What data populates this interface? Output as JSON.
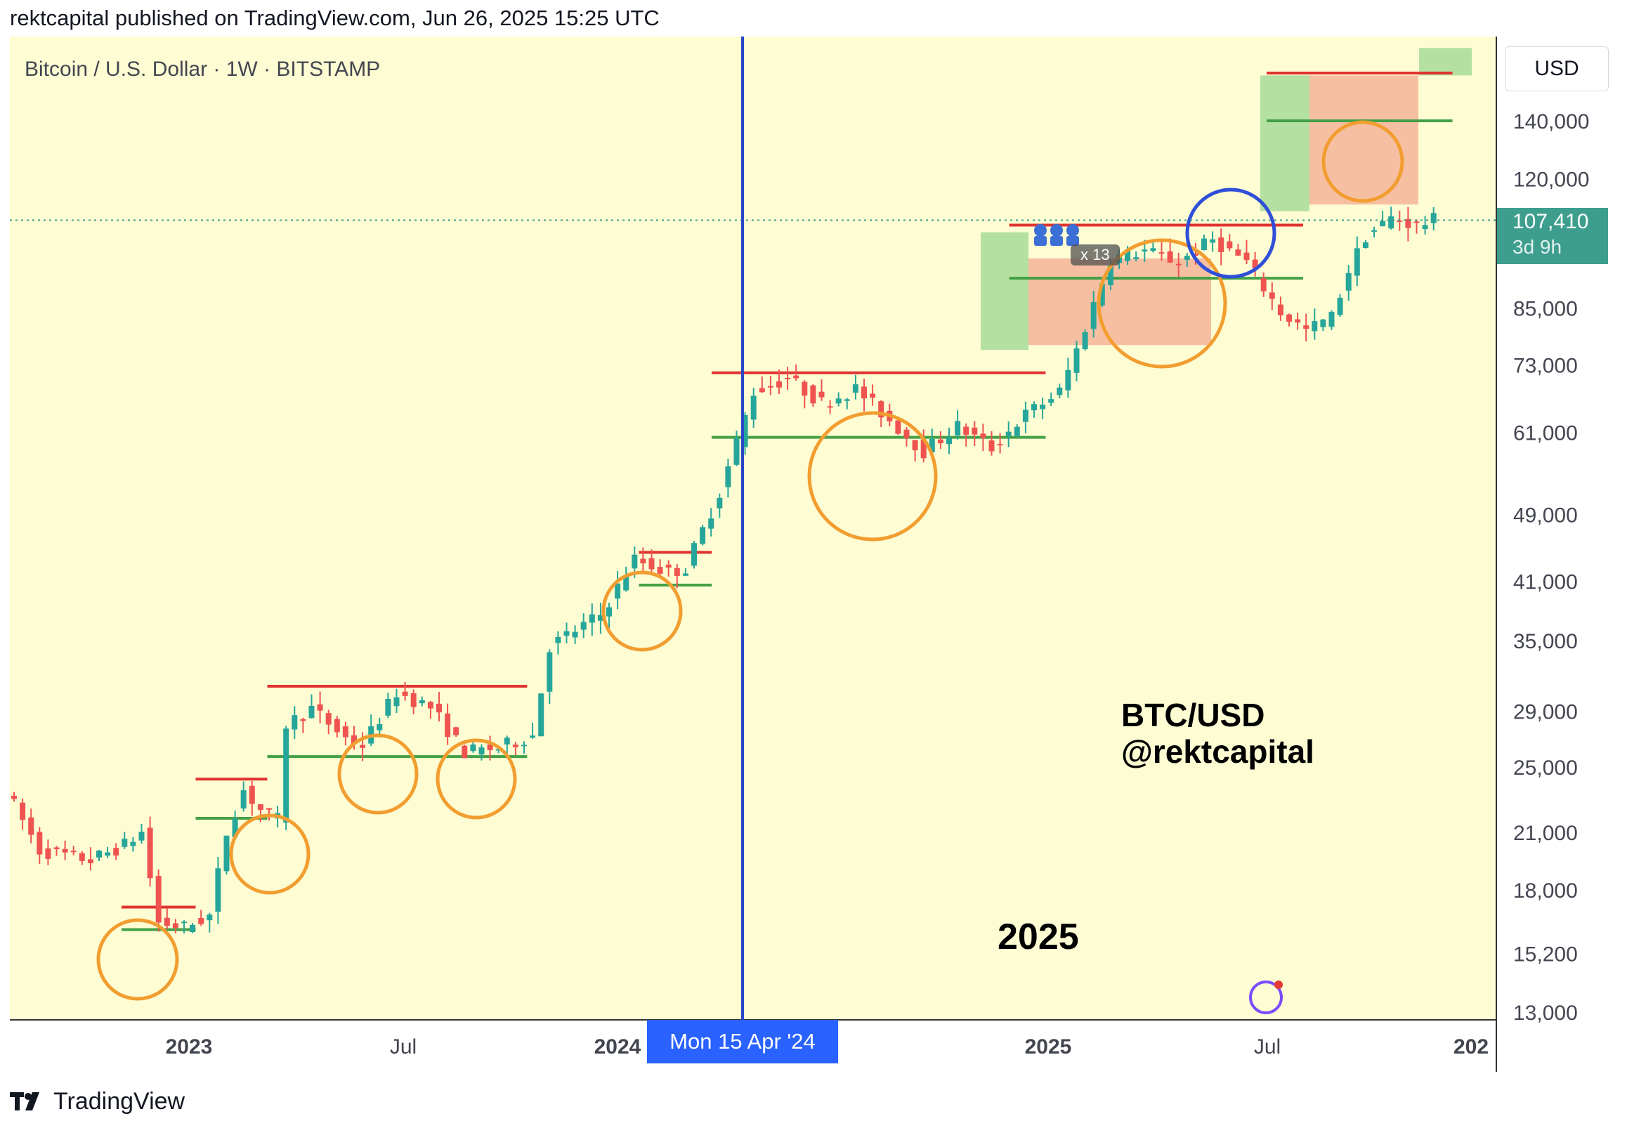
{
  "header": {
    "published_text": "rektcapital published on TradingView.com, Jun 26, 2025 15:25 UTC"
  },
  "toolbar": {
    "symbol_text": "Bitcoin / U.S. Dollar · 1W · BITSTAMP",
    "currency_label": "USD"
  },
  "price_axis": {
    "ticks": [
      "140,000",
      "120,000",
      "107,410",
      "85,000",
      "73,000",
      "61,000",
      "49,000",
      "41,000",
      "35,000",
      "29,000",
      "25,000",
      "21,000",
      "18,000",
      "15,200",
      "13,000"
    ]
  },
  "current_price": {
    "value": "107,410",
    "countdown": "3d 9h"
  },
  "time_axis": {
    "labels": [
      "2023",
      "Jul",
      "2024",
      "Jul",
      "2025",
      "Jul",
      "202"
    ]
  },
  "crosshair": {
    "date_label": "Mon 15 Apr '24"
  },
  "annotations": {
    "watermark_line1": "BTC/USD",
    "watermark_line2": "@rektcapital",
    "year_text": "2025",
    "badge_text": "x 13"
  },
  "footer": {
    "brand": "TradingView"
  },
  "colors": {
    "background": "#fdfcd3",
    "bull": "#26a69a",
    "bear": "#ef5350",
    "resistance": "#e0322f",
    "support": "#43a047",
    "circle": "#f29d2f",
    "highlight_circle": "#2f4fd8",
    "crosshair": "#2946c9"
  },
  "chart_data": {
    "type": "candlestick",
    "title": "Bitcoin / U.S. Dollar · 1W · BITSTAMP",
    "xlabel": "",
    "ylabel": "",
    "ylim": [
      13000,
      170000
    ],
    "scale": "log",
    "x_ticks": [
      "2023",
      "Jul",
      "2024",
      "Jul",
      "2025",
      "Jul",
      "202"
    ],
    "y_ticks": [
      13000,
      15200,
      18000,
      21000,
      25000,
      29000,
      35000,
      41000,
      49000,
      61000,
      73000,
      85000,
      120000,
      140000
    ],
    "last_price": 107410,
    "crosshair_date": "2024-04-15",
    "range_lines": [
      {
        "kind": "resistance",
        "price": 17200,
        "from": "2022-11",
        "to": "2023-01"
      },
      {
        "kind": "support",
        "price": 16200,
        "from": "2022-11",
        "to": "2023-01"
      },
      {
        "kind": "resistance",
        "price": 24200,
        "from": "2023-01",
        "to": "2023-03"
      },
      {
        "kind": "support",
        "price": 21800,
        "from": "2023-01",
        "to": "2023-03"
      },
      {
        "kind": "resistance",
        "price": 31000,
        "from": "2023-03",
        "to": "2023-10"
      },
      {
        "kind": "support",
        "price": 25700,
        "from": "2023-03",
        "to": "2023-10"
      },
      {
        "kind": "resistance",
        "price": 44300,
        "from": "2024-01",
        "to": "2024-03"
      },
      {
        "kind": "support",
        "price": 40600,
        "from": "2024-01",
        "to": "2024-03"
      },
      {
        "kind": "resistance",
        "price": 71500,
        "from": "2024-03",
        "to": "2024-12"
      },
      {
        "kind": "support",
        "price": 60200,
        "from": "2024-03",
        "to": "2024-12"
      },
      {
        "kind": "resistance",
        "price": 106000,
        "from": "2024-11",
        "to": "2025-07"
      },
      {
        "kind": "support",
        "price": 92000,
        "from": "2024-11",
        "to": "2025-07"
      },
      {
        "kind": "resistance",
        "price": 159000,
        "from": "2025-06",
        "to": "2025-11"
      },
      {
        "kind": "support",
        "price": 140000,
        "from": "2025-06",
        "to": "2025-11"
      }
    ],
    "candles": []
  }
}
